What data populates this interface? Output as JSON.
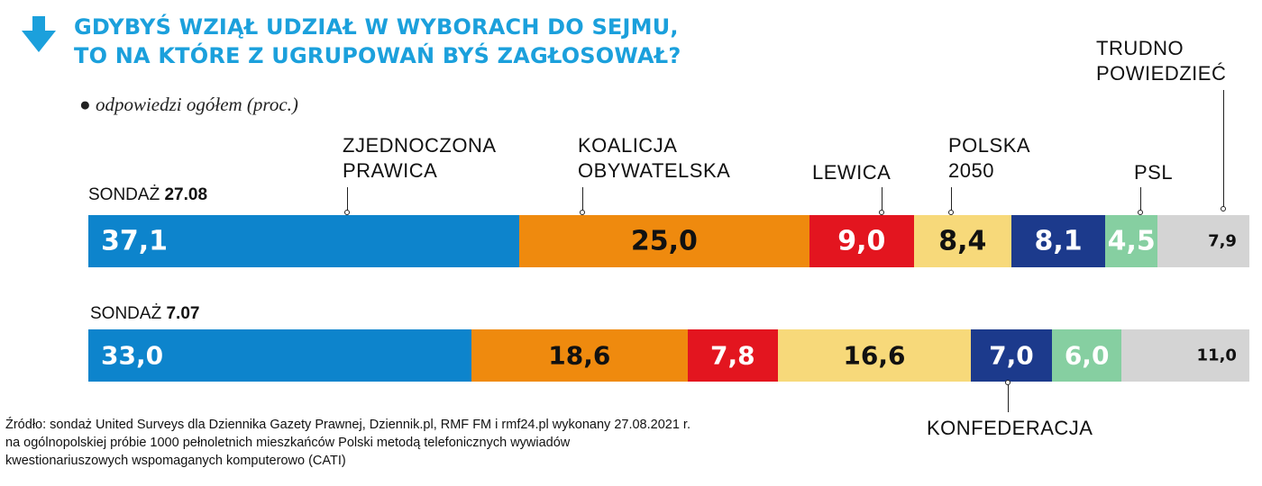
{
  "title_line1": "GDYBYŚ WZIĄŁ UDZIAŁ W WYBORACH DO SEJMU,",
  "title_line2": "TO NA KTÓRE Z UGRUPOWAŃ BYŚ ZAGŁOSOWAŁ?",
  "subtitle": "odpowiedzi ogółem (proc.)",
  "source_line1": "Źródło: sondaż United Surveys dla Dziennika Gazety Prawnej, Dziennik.pl, RMF FM i rmf24.pl wykonany 27.08.2021 r.",
  "source_line2": "na ogólnopolskiej próbie 1000 pełnoletnich mieszkańców Polski metodą telefonicznych wywiadów",
  "source_line3": "kwestionariuszowych wspomaganych komputerowo (CATI)",
  "chart_data": {
    "type": "bar",
    "stacked": true,
    "orientation": "horizontal",
    "surveys": [
      {
        "label_prefix": "SONDAŻ",
        "label_date": "27.08"
      },
      {
        "label_prefix": "SONDAŻ",
        "label_date": "7.07"
      }
    ],
    "categories": [
      {
        "id": "zp",
        "name": "ZJEDNOCZONA PRAWICA",
        "color": "#0d84cc",
        "text_color": "#ffffff"
      },
      {
        "id": "ko",
        "name": "KOALICJA OBYWATELSKA",
        "color": "#ef8a0e",
        "text_color": "#111111"
      },
      {
        "id": "lew",
        "name": "LEWICA",
        "color": "#e3151f",
        "text_color": "#ffffff"
      },
      {
        "id": "p2050",
        "name": "POLSKA 2050",
        "color": "#f7d97a",
        "text_color": "#111111"
      },
      {
        "id": "konf",
        "name": "KONFEDERACJA",
        "color": "#1c3a8c",
        "text_color": "#ffffff"
      },
      {
        "id": "psl",
        "name": "PSL",
        "color": "#86cfa1",
        "text_color": "#ffffff"
      },
      {
        "id": "tp",
        "name": "TRUDNO POWIEDZIEĆ",
        "color": "#d4d4d4",
        "text_color": "#111111"
      }
    ],
    "values": [
      [
        37.1,
        25.0,
        9.0,
        8.4,
        8.1,
        4.5,
        7.9
      ],
      [
        33.0,
        18.6,
        7.8,
        16.6,
        7.0,
        6.0,
        11.0
      ]
    ],
    "value_labels": [
      [
        "37,1",
        "25,0",
        "9,0",
        "8,4",
        "8,1",
        "4,5",
        "7,9"
      ],
      [
        "33,0",
        "18,6",
        "7,8",
        "16,6",
        "7,0",
        "6,0",
        "11,0"
      ]
    ],
    "xlim": [
      0,
      100
    ]
  }
}
